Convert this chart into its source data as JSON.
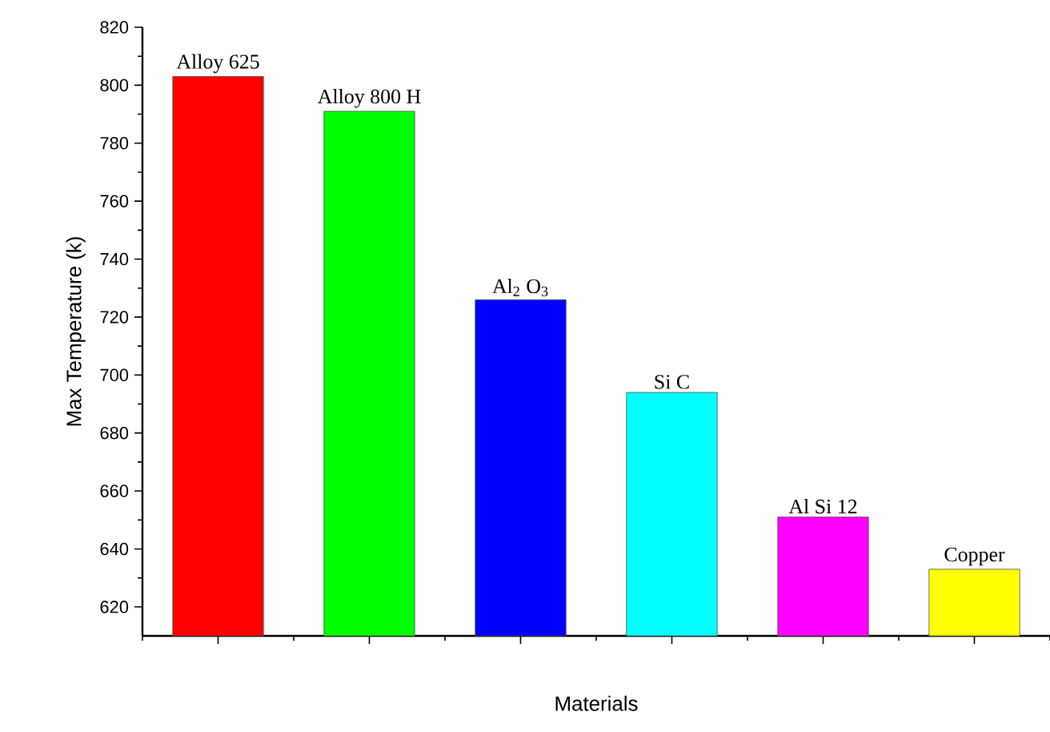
{
  "chart_data": {
    "type": "bar",
    "xlabel": "Materials",
    "ylabel": "Max Temperature (k)",
    "categories": [
      "Alloy 625",
      "Alloy 800 H",
      "Al$_{2}$ O$_{3}$",
      "Si C",
      "Al Si 12",
      "Copper"
    ],
    "values": [
      803,
      791,
      726,
      694,
      651,
      633
    ],
    "colors": [
      "#ff0000",
      "#00ff00",
      "#0000ff",
      "#00ffff",
      "#ff00ff",
      "#ffff00"
    ],
    "ylim": [
      610,
      820
    ],
    "yticks": [
      620,
      640,
      660,
      680,
      700,
      720,
      740,
      760,
      780,
      800,
      820
    ],
    "grid": false
  }
}
